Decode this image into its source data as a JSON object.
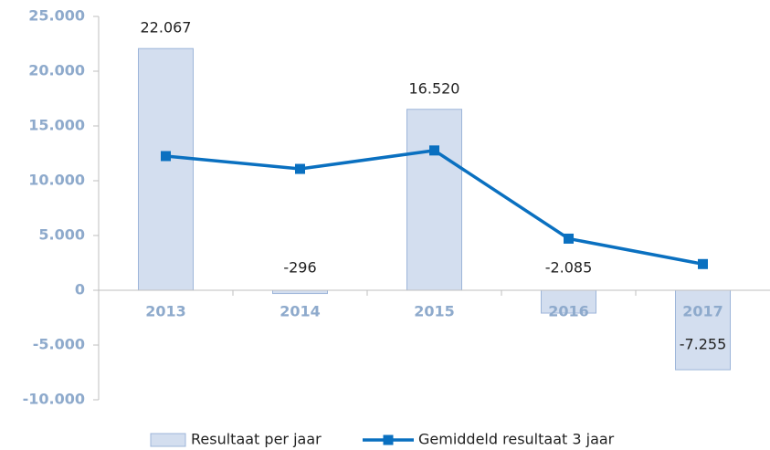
{
  "chart_data": {
    "type": "bar-line",
    "categories": [
      "2013",
      "2014",
      "2015",
      "2016",
      "2017"
    ],
    "series": [
      {
        "name": "Resultaat per jaar",
        "type": "bar",
        "color": "#d3deef",
        "values": [
          22067,
          -296,
          16520,
          -2085,
          -7255
        ],
        "value_labels": [
          "22.067",
          "-296",
          "16.520",
          "-2.085",
          "-7.255"
        ]
      },
      {
        "name": "Gemiddeld resultaat 3 jaar",
        "type": "line",
        "color": "#0a70c0",
        "values": [
          12250,
          11080,
          12764,
          4713,
          2393
        ]
      }
    ],
    "ylim": [
      -10000,
      25000
    ],
    "yticks": [
      {
        "value": -10000,
        "label": "-10.000"
      },
      {
        "value": -5000,
        "label": "-5.000"
      },
      0,
      {
        "value": 5000,
        "label": "5.000"
      },
      {
        "value": 10000,
        "label": "10.000"
      },
      {
        "value": 15000,
        "label": "15.000"
      },
      {
        "value": 20000,
        "label": "20.000"
      },
      {
        "value": 25000,
        "label": "25.000"
      }
    ],
    "grid": false,
    "legend": "bottom"
  }
}
